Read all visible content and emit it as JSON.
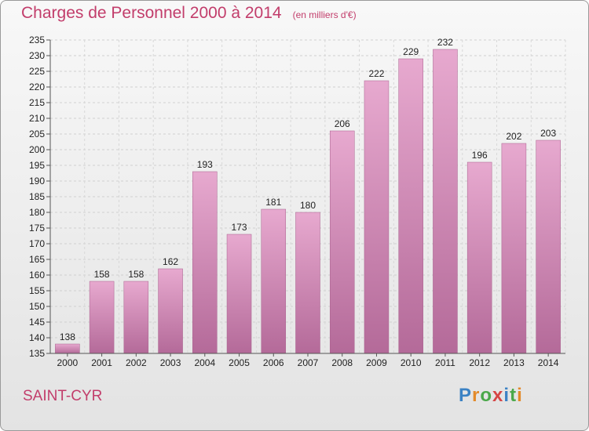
{
  "header": {
    "title": "Charges de Personnel 2000 à 2014",
    "subtitle": "(en milliers d'€)"
  },
  "commune": "SAINT-CYR",
  "logo": {
    "text": "Proxiti"
  },
  "colors": {
    "accent": "#c23d6b",
    "bar_light": "#e7a9cf",
    "bar_dark": "#b46a99",
    "background_top": "#f8f8f8",
    "background_bottom": "#e3e3e3"
  },
  "chart_data": {
    "type": "bar",
    "categories": [
      "2000",
      "2001",
      "2002",
      "2003",
      "2004",
      "2005",
      "2006",
      "2007",
      "2008",
      "2009",
      "2010",
      "2011",
      "2012",
      "2013",
      "2014"
    ],
    "values": [
      138,
      158,
      158,
      162,
      193,
      173,
      181,
      180,
      206,
      222,
      229,
      232,
      196,
      202,
      203
    ],
    "title": "Charges de Personnel 2000 à 2014",
    "subtitle": "(en milliers d'€)",
    "ylim": [
      135,
      235
    ],
    "ytick_step": 5,
    "grid": true,
    "legend": "none"
  }
}
